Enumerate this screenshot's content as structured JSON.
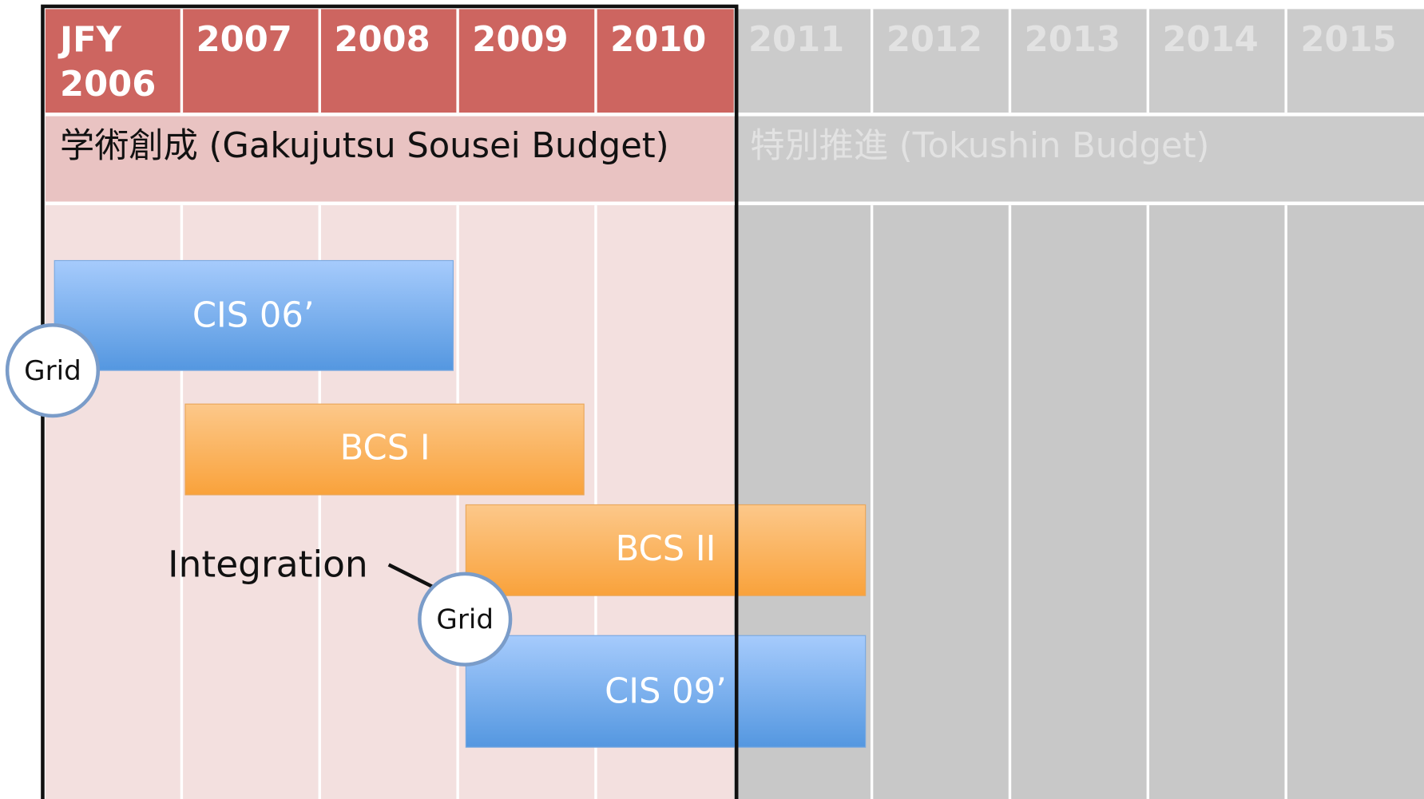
{
  "header": {
    "years": [
      "JFY 2006",
      "2007",
      "2008",
      "2009",
      "2010",
      "2011",
      "2012",
      "2013",
      "2014",
      "2015"
    ]
  },
  "budgets": [
    "学術創成 (Gakujutsu Sousei Budget)",
    "特別推進 (Tokushin Budget)"
  ],
  "bars": [
    {
      "label": "CIS 06’"
    },
    {
      "label": "BCS I"
    },
    {
      "label": "BCS II"
    },
    {
      "label": "CIS 09’"
    }
  ],
  "badges": [
    "Grid",
    "Grid"
  ],
  "annotation": "Integration"
}
